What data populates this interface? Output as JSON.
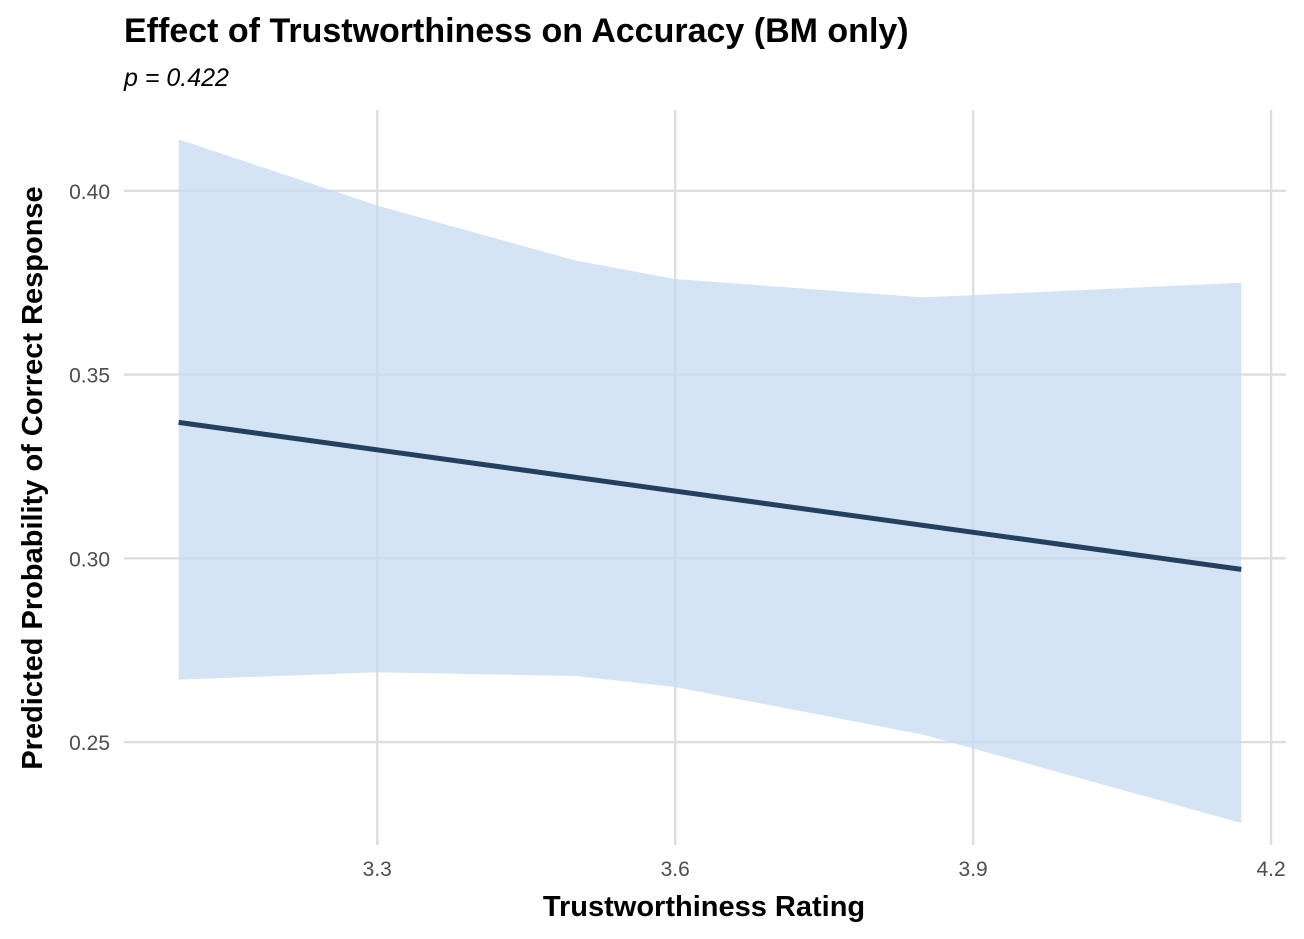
{
  "chart_data": {
    "type": "line",
    "title": "Effect of Trustworthiness on Accuracy (BM only)",
    "subtitle": "p = 0.422",
    "xlabel": "Trustworthiness Rating",
    "ylabel": "Predicted Probability of Correct Response",
    "xlim": [
      3.045,
      4.215
    ],
    "ylim": [
      0.222,
      0.422
    ],
    "x_ticks": [
      3.3,
      3.6,
      3.9,
      4.2
    ],
    "x_tick_labels": [
      "3.3",
      "3.6",
      "3.9",
      "4.2"
    ],
    "y_ticks": [
      0.25,
      0.3,
      0.35,
      0.4
    ],
    "y_tick_labels": [
      "0.25",
      "0.30",
      "0.35",
      "0.40"
    ],
    "grid": true,
    "series": [
      {
        "x": [
          3.1,
          4.17
        ],
        "y": [
          0.337,
          0.297
        ],
        "color": "#24405f"
      }
    ],
    "ribbon": {
      "color": "#c5dbf2",
      "x": [
        3.1,
        3.2,
        3.3,
        3.5,
        3.6,
        3.85,
        4.17
      ],
      "upper": [
        0.414,
        0.405,
        0.396,
        0.381,
        0.376,
        0.371,
        0.375
      ],
      "lower": [
        0.267,
        0.268,
        0.269,
        0.268,
        0.265,
        0.252,
        0.228
      ]
    }
  }
}
